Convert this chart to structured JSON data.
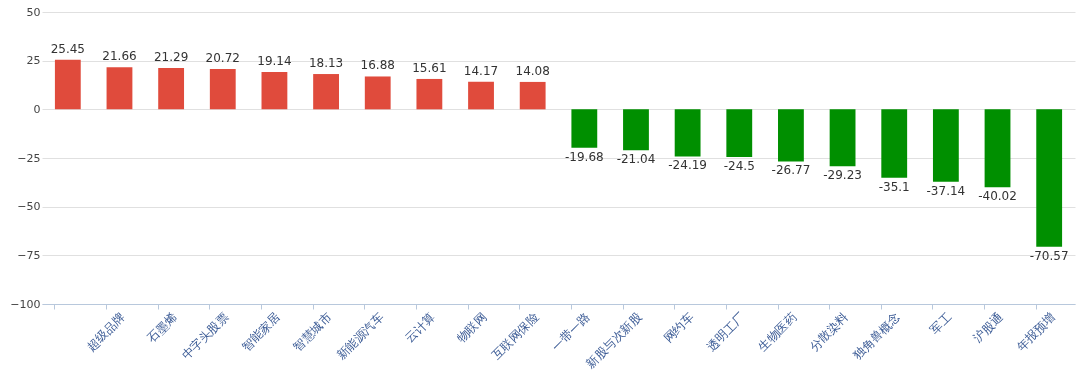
{
  "chart_data": {
    "type": "bar",
    "categories": [
      null,
      "超级品牌",
      "石墨烯",
      "中字头股票",
      "智能家居",
      "智慧城市",
      "新能源汽车",
      "云计算",
      "物联网",
      "互联网保险",
      "一带一路",
      "新股与次新股",
      "网约车",
      "透明工厂",
      "生物医药",
      "分散染料",
      "独角兽概念",
      "军工",
      "沪股通",
      "年报预增"
    ],
    "values": [
      25.45,
      21.66,
      21.29,
      20.72,
      19.14,
      18.13,
      16.88,
      15.61,
      14.17,
      14.08,
      -19.68,
      -21.04,
      -24.19,
      -24.5,
      -26.77,
      -29.23,
      -35.1,
      -37.14,
      -40.02,
      -70.57
    ],
    "colors": [
      "#e04b3c",
      "#e04b3c",
      "#e04b3c",
      "#e04b3c",
      "#e04b3c",
      "#e04b3c",
      "#e04b3c",
      "#e04b3c",
      "#e04b3c",
      "#e04b3c",
      "#008f00",
      "#008f00",
      "#008f00",
      "#008f00",
      "#008f00",
      "#008f00",
      "#008f00",
      "#008f00",
      "#008f00",
      "#008f00"
    ],
    "ylim": [
      -100,
      50
    ],
    "yticks": [
      -100,
      -75,
      -50,
      -25,
      0,
      25,
      50
    ],
    "grid": "y",
    "data_labels": true
  }
}
